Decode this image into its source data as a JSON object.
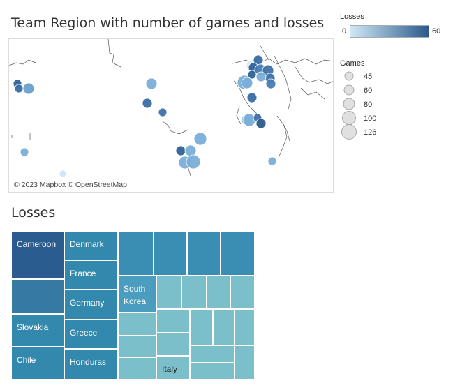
{
  "map": {
    "title": "Team Region with number of games and losses",
    "credit": "© 2023 Mapbox © OpenStreetMap"
  },
  "legend": {
    "losses_title": "Losses",
    "losses_min": "0",
    "losses_max": "60",
    "ramp_light": "#cfe8f7",
    "ramp_dark": "#2c5a8c",
    "games_title": "Games",
    "games_sizes": [
      "45",
      "60",
      "80",
      "100",
      "126"
    ]
  },
  "treemap": {
    "title": "Losses",
    "labels": [
      "Cameroon",
      "Denmark",
      "France",
      "Germany",
      "Slovakia",
      "Greece",
      "Chile",
      "Honduras",
      "South Korea",
      "Italy"
    ]
  },
  "chart_data": [
    {
      "type": "scatter",
      "title": "Team Region with number of games and losses",
      "encoding": "map bubbles: size = Games, color = Losses",
      "size_legend": {
        "title": "Games",
        "values": [
          45,
          60,
          80,
          100,
          126
        ]
      },
      "color_legend": {
        "title": "Losses",
        "range": [
          0,
          60
        ]
      }
    },
    {
      "type": "heatmap",
      "subtype": "treemap",
      "title": "Losses",
      "labeled_tiles": [
        "Cameroon",
        "Denmark",
        "France",
        "Germany",
        "Slovakia",
        "Greece",
        "Chile",
        "Honduras",
        "South Korea",
        "Italy"
      ]
    }
  ]
}
